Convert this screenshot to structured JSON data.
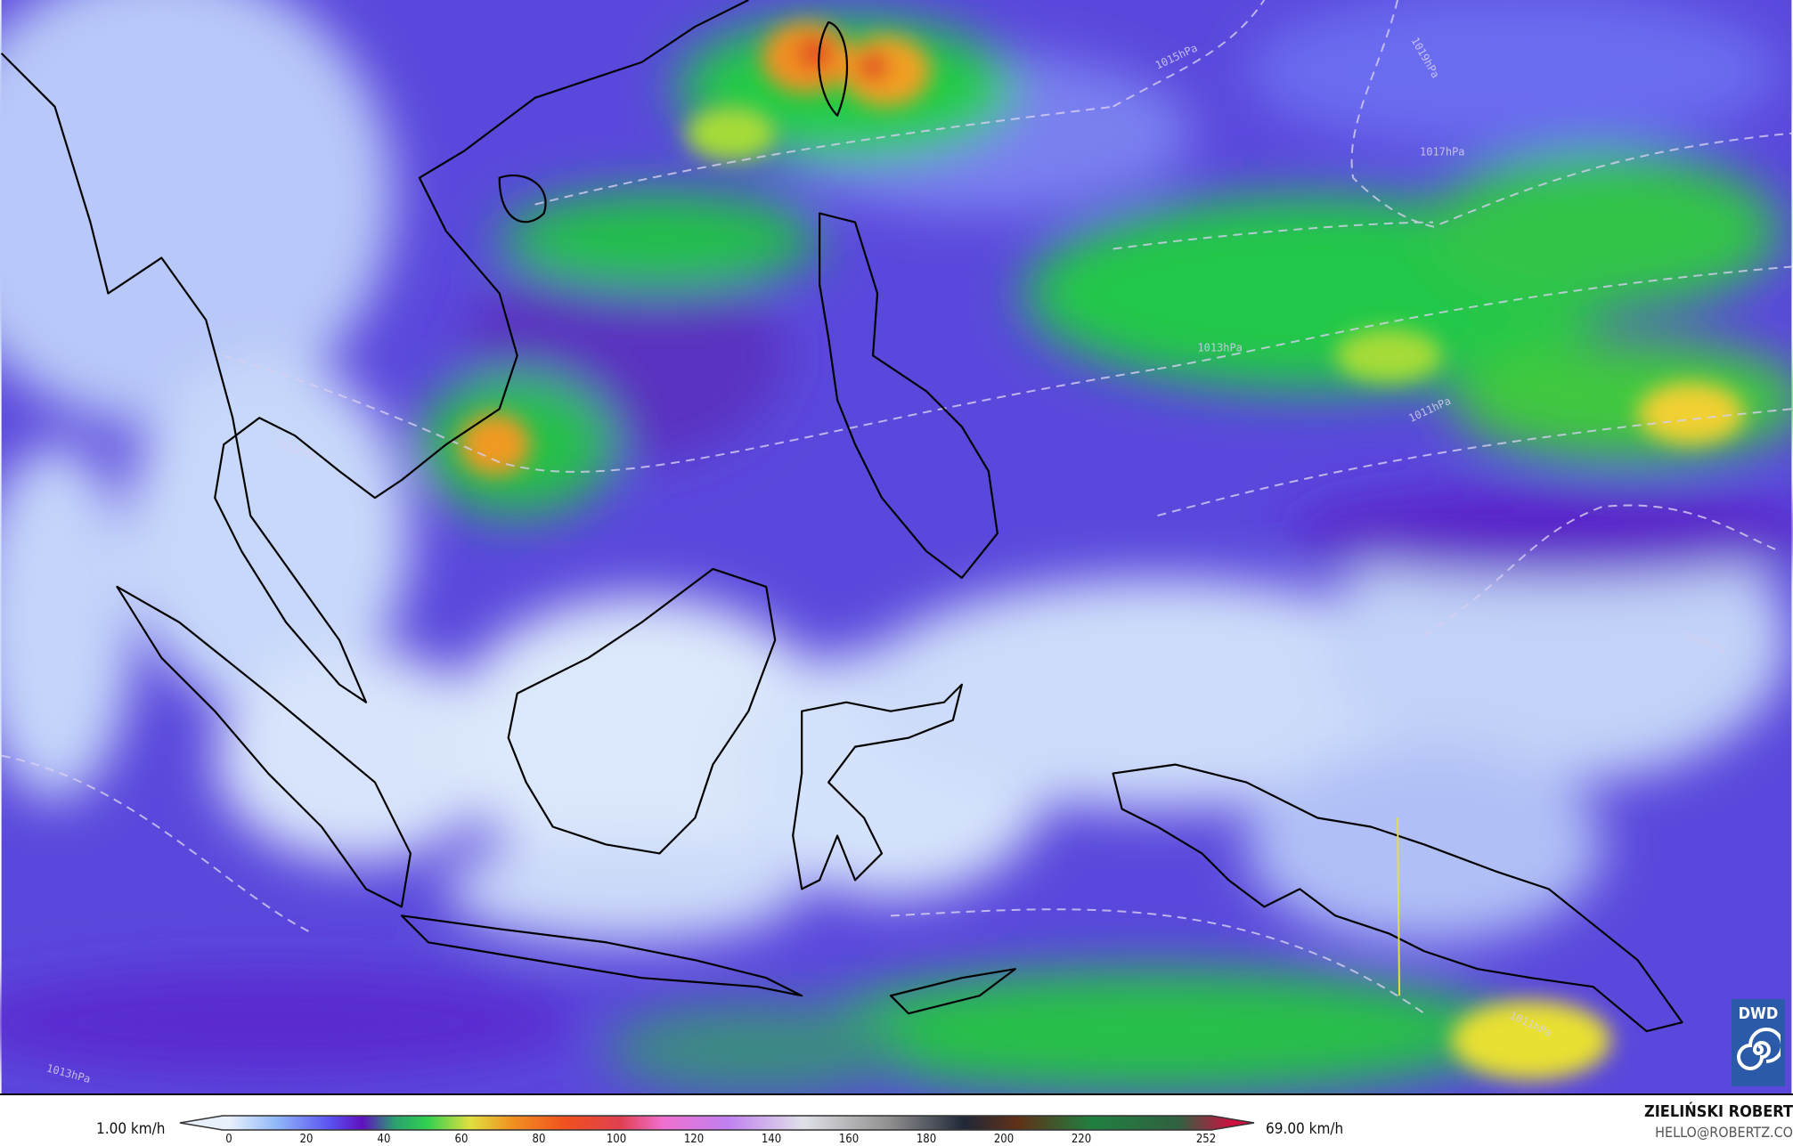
{
  "map": {
    "type": "wind speed field",
    "colors": {
      "calm": "#dce8fb",
      "light": "#7c86f2",
      "moderate": "#6420d0",
      "teal": "#3d7a86",
      "green": "#20cc44",
      "lime": "#a6dc38",
      "yellow": "#f0e030",
      "orange": "#f09020",
      "red": "#e03020"
    },
    "isobar_labels": [
      "1015hPa",
      "1019hPa",
      "1017hPa",
      "1013hPa",
      "1011hPa",
      "1009hPa",
      "1013hPa",
      "1011hPa",
      "1013hPa"
    ]
  },
  "legend": {
    "min_label": "1.00 km/h",
    "max_label": "69.00 km/h",
    "ticks": [
      "0",
      "20",
      "40",
      "60",
      "80",
      "100",
      "120",
      "140",
      "160",
      "180",
      "200",
      "220",
      "252"
    ],
    "range": [
      0,
      252
    ]
  },
  "logo": {
    "text": "DWD"
  },
  "credit": {
    "name": "ZIELIŃSKI ROBERT",
    "email": "HELLO@ROBERTZ.CO"
  }
}
